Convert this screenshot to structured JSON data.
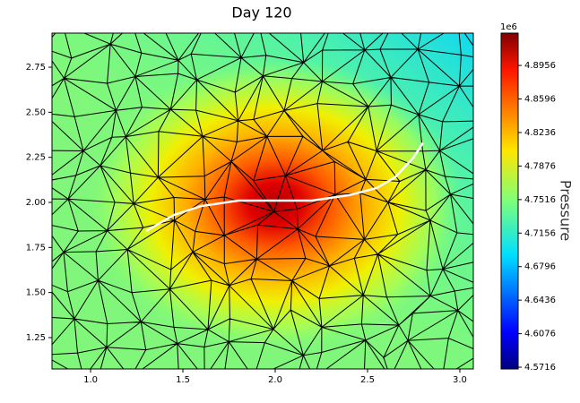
{
  "chart_data": {
    "type": "field",
    "title": "Day 120",
    "xlim": [
      0.791,
      3.073
    ],
    "xticks": [
      {
        "value": 1,
        "label": "1.0"
      },
      1.5,
      {
        "value": 2,
        "label": "2.0"
      },
      2.5,
      {
        "value": 3,
        "label": "3.0"
      }
    ],
    "ylim": [
      1.076,
      2.939
    ],
    "yticks": [
      1.25,
      {
        "value": 1.5,
        "label": "1.50"
      },
      1.75,
      {
        "value": 2,
        "label": "2.00"
      },
      2.25,
      {
        "value": 2.5,
        "label": "2.50"
      },
      2.75
    ],
    "fracture": {
      "color": "#ffffff",
      "x": [
        1.3,
        1.45,
        1.6,
        1.8,
        2.0,
        2.2,
        2.4,
        2.55,
        2.65,
        2.75,
        2.8
      ],
      "y": [
        1.84,
        1.93,
        1.98,
        2.01,
        2.01,
        2.01,
        2.04,
        2.08,
        2.14,
        2.25,
        2.33
      ]
    },
    "colorbar": {
      "label": "Pressure",
      "offset_label": "1e6",
      "colormap": "jet",
      "clim": [
        4.5697,
        4.9303
      ],
      "ticks": [
        4.5716,
        4.6076,
        4.6436,
        4.6796,
        4.7156,
        4.7516,
        4.7876,
        4.8236,
        4.8596,
        4.8956
      ]
    }
  }
}
